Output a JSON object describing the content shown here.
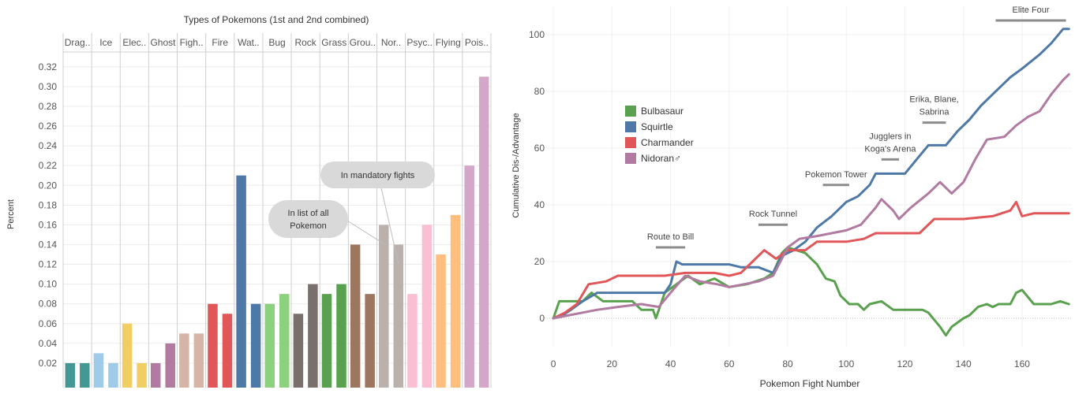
{
  "chart_data": [
    {
      "type": "bar",
      "title": "Types of Pokemons (1st and 2nd combined)",
      "ylabel": "Percent",
      "ylim": [
        0,
        0.335
      ],
      "yticks": [
        0.02,
        0.04,
        0.06,
        0.08,
        0.1,
        0.12,
        0.14,
        0.16,
        0.18,
        0.2,
        0.22,
        0.24,
        0.26,
        0.28,
        0.3,
        0.32
      ],
      "ytick_labels": [
        "0.02",
        "0.04",
        "0.06",
        "0.08",
        "0.10",
        "0.12",
        "0.14",
        "0.16",
        "0.18",
        "0.20",
        "0.22",
        "0.24",
        "0.26",
        "0.28",
        "0.30",
        "0.32"
      ],
      "grid": true,
      "categories": [
        "Drag..",
        "Ice",
        "Elec..",
        "Ghost",
        "Figh..",
        "Fire",
        "Wat..",
        "Bug",
        "Rock",
        "Grass",
        "Grou..",
        "Nor..",
        "Psyc..",
        "Flying",
        "Pois.."
      ],
      "category_colors": [
        [
          "#439894",
          "#439894"
        ],
        [
          "#9fcbe8",
          "#9fcbe8"
        ],
        [
          "#f1ce63",
          "#f1ce63"
        ],
        [
          "#b07aa1",
          "#b07aa1"
        ],
        [
          "#d7b5a6",
          "#d7b5a6"
        ],
        [
          "#e15759",
          "#e15759"
        ],
        [
          "#4e79a7",
          "#4e79a7"
        ],
        [
          "#8cd17d",
          "#8cd17d"
        ],
        [
          "#79706e",
          "#79706e"
        ],
        [
          "#59a14f",
          "#59a14f"
        ],
        [
          "#9d7660",
          "#9d7660"
        ],
        [
          "#bab0ac",
          "#bab0ac"
        ],
        [
          "#fabfd2",
          "#fabfd2"
        ],
        [
          "#ffbe7d",
          "#ffbe7d"
        ],
        [
          "#d4a6c8",
          "#d4a6c8"
        ]
      ],
      "series": [
        {
          "name": "In list of all Pokemon",
          "values": [
            0.02,
            0.03,
            0.06,
            0.02,
            0.05,
            0.08,
            0.21,
            0.08,
            0.07,
            0.09,
            0.14,
            0.16,
            0.09,
            0.13,
            0.22
          ]
        },
        {
          "name": "In mandatory fights",
          "values": [
            0.02,
            0.02,
            0.02,
            0.04,
            0.05,
            0.07,
            0.08,
            0.09,
            0.1,
            0.1,
            0.09,
            0.14,
            0.16,
            0.17,
            0.31
          ]
        }
      ],
      "annotations": [
        {
          "text_lines": [
            "In list of all",
            "Pokemon"
          ],
          "points_to": "Nor.. / In list of all Pokemon"
        },
        {
          "text_lines": [
            "In mandatory fights"
          ],
          "points_to": "Nor.. / In mandatory fights"
        }
      ]
    },
    {
      "type": "line",
      "xlabel": "Pokemon Fight Number",
      "ylabel": "Cumulative Dis-/Advantage",
      "xlim": [
        -3,
        177
      ],
      "ylim": [
        -10,
        110
      ],
      "xticks": [
        0,
        20,
        40,
        60,
        80,
        100,
        120,
        140,
        160
      ],
      "yticks": [
        0,
        20,
        40,
        60,
        80,
        100
      ],
      "grid": true,
      "legend_position": "upper-left",
      "series": [
        {
          "name": "Bulbasaur",
          "color": "#59a14f",
          "points": [
            [
              0,
              0
            ],
            [
              2,
              6
            ],
            [
              10,
              6
            ],
            [
              13,
              9
            ],
            [
              17,
              6
            ],
            [
              27,
              6
            ],
            [
              30,
              3
            ],
            [
              34,
              3
            ],
            [
              35,
              0
            ],
            [
              38,
              9
            ],
            [
              42,
              12
            ],
            [
              46,
              15
            ],
            [
              50,
              12
            ],
            [
              55,
              14
            ],
            [
              60,
              11
            ],
            [
              66,
              12
            ],
            [
              72,
              14
            ],
            [
              75,
              16
            ],
            [
              78,
              23
            ],
            [
              80,
              25
            ],
            [
              86,
              23
            ],
            [
              90,
              19
            ],
            [
              93,
              14
            ],
            [
              96,
              13
            ],
            [
              98,
              8
            ],
            [
              101,
              5
            ],
            [
              104,
              5
            ],
            [
              106,
              3
            ],
            [
              108,
              5
            ],
            [
              112,
              6
            ],
            [
              116,
              3
            ],
            [
              120,
              3
            ],
            [
              126,
              3
            ],
            [
              128,
              2
            ],
            [
              132,
              -3
            ],
            [
              134,
              -6
            ],
            [
              136,
              -3
            ],
            [
              140,
              0
            ],
            [
              142,
              1
            ],
            [
              145,
              4
            ],
            [
              148,
              5
            ],
            [
              150,
              4
            ],
            [
              152,
              5
            ],
            [
              156,
              5
            ],
            [
              158,
              9
            ],
            [
              160,
              10
            ],
            [
              164,
              5
            ],
            [
              170,
              5
            ],
            [
              173,
              6
            ],
            [
              176,
              5
            ]
          ]
        },
        {
          "name": "Squirtle",
          "color": "#4e79a7",
          "points": [
            [
              0,
              0
            ],
            [
              3,
              1
            ],
            [
              6,
              3
            ],
            [
              10,
              6
            ],
            [
              15,
              9
            ],
            [
              20,
              9
            ],
            [
              38,
              9
            ],
            [
              40,
              12
            ],
            [
              42,
              20
            ],
            [
              44,
              19
            ],
            [
              60,
              19
            ],
            [
              64,
              18
            ],
            [
              70,
              18
            ],
            [
              75,
              16
            ],
            [
              78,
              22
            ],
            [
              82,
              24
            ],
            [
              86,
              27
            ],
            [
              90,
              32
            ],
            [
              95,
              36
            ],
            [
              100,
              41
            ],
            [
              104,
              43
            ],
            [
              108,
              47
            ],
            [
              110,
              51
            ],
            [
              120,
              51
            ],
            [
              124,
              56
            ],
            [
              128,
              61
            ],
            [
              134,
              61
            ],
            [
              138,
              66
            ],
            [
              142,
              70
            ],
            [
              146,
              75
            ],
            [
              150,
              79
            ],
            [
              156,
              85
            ],
            [
              160,
              88
            ],
            [
              166,
              93
            ],
            [
              170,
              97
            ],
            [
              174,
              102
            ],
            [
              176,
              102
            ]
          ]
        },
        {
          "name": "Charmander",
          "color": "#e15759",
          "points": [
            [
              0,
              0
            ],
            [
              4,
              2
            ],
            [
              8,
              5
            ],
            [
              12,
              12
            ],
            [
              18,
              13
            ],
            [
              22,
              15
            ],
            [
              30,
              15
            ],
            [
              38,
              15
            ],
            [
              45,
              16
            ],
            [
              50,
              16
            ],
            [
              55,
              16
            ],
            [
              60,
              15
            ],
            [
              64,
              16
            ],
            [
              68,
              20
            ],
            [
              72,
              24
            ],
            [
              76,
              21
            ],
            [
              80,
              24
            ],
            [
              86,
              24
            ],
            [
              90,
              27
            ],
            [
              100,
              27
            ],
            [
              106,
              28
            ],
            [
              110,
              30
            ],
            [
              125,
              30
            ],
            [
              130,
              35
            ],
            [
              140,
              35
            ],
            [
              150,
              36
            ],
            [
              156,
              38
            ],
            [
              158,
              41
            ],
            [
              160,
              36
            ],
            [
              164,
              37
            ],
            [
              170,
              37
            ],
            [
              175,
              37
            ],
            [
              176,
              37
            ]
          ]
        },
        {
          "name": "Nidoran♂",
          "color": "#b07aa1",
          "points": [
            [
              0,
              0
            ],
            [
              5,
              1
            ],
            [
              10,
              2
            ],
            [
              15,
              3
            ],
            [
              22,
              4
            ],
            [
              30,
              5
            ],
            [
              36,
              4
            ],
            [
              40,
              9
            ],
            [
              45,
              15
            ],
            [
              50,
              13
            ],
            [
              56,
              12
            ],
            [
              60,
              11
            ],
            [
              65,
              12
            ],
            [
              70,
              13
            ],
            [
              75,
              15
            ],
            [
              80,
              25
            ],
            [
              84,
              28
            ],
            [
              90,
              29
            ],
            [
              95,
              30
            ],
            [
              100,
              31
            ],
            [
              105,
              33
            ],
            [
              110,
              39
            ],
            [
              112,
              42
            ],
            [
              116,
              38
            ],
            [
              118,
              35
            ],
            [
              122,
              39
            ],
            [
              128,
              44
            ],
            [
              132,
              48
            ],
            [
              136,
              44
            ],
            [
              140,
              48
            ],
            [
              144,
              56
            ],
            [
              148,
              63
            ],
            [
              154,
              64
            ],
            [
              158,
              68
            ],
            [
              162,
              71
            ],
            [
              166,
              73
            ],
            [
              170,
              79
            ],
            [
              174,
              84
            ],
            [
              176,
              86
            ]
          ]
        }
      ],
      "segment_labels": [
        {
          "label_lines": [
            "Route to Bill"
          ],
          "x0": 35,
          "x1": 45,
          "y": 25
        },
        {
          "label_lines": [
            "Rock Tunnel"
          ],
          "x0": 70,
          "x1": 80,
          "y": 33
        },
        {
          "label_lines": [
            "Pokemon Tower"
          ],
          "x0": 92,
          "x1": 101,
          "y": 47
        },
        {
          "label_lines": [
            "Jugglers in",
            "Koga's Arena"
          ],
          "x0": 112,
          "x1": 118,
          "y": 56
        },
        {
          "label_lines": [
            "Erika, Blane,",
            "Sabrina"
          ],
          "x0": 126,
          "x1": 134,
          "y": 69
        },
        {
          "label_lines": [
            "Elite Four"
          ],
          "x0": 151,
          "x1": 175,
          "y": 105
        }
      ]
    }
  ]
}
